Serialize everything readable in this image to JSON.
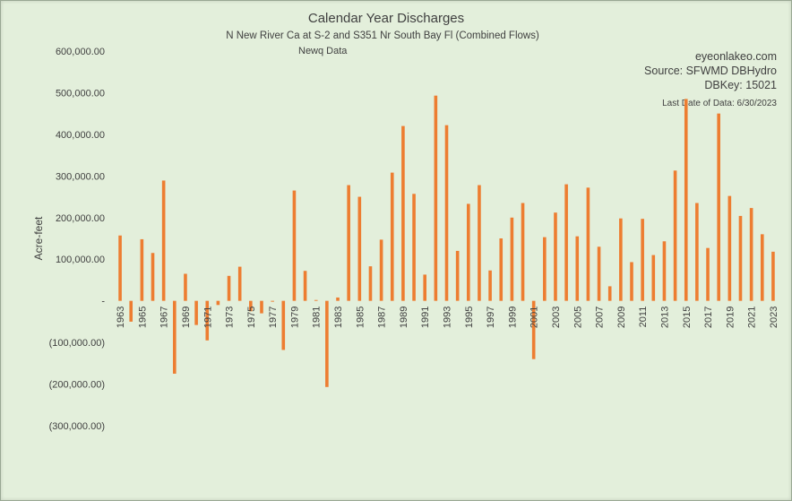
{
  "chart_data": {
    "type": "bar",
    "title": "Calendar Year Discharges",
    "subtitle": "N New River Ca at S-2 and S351 Nr South Bay Fl (Combined Flows)",
    "note": "Newq Data",
    "source_lines": [
      "eyeonlakeo.com",
      "Source: SFWMD DBHydro",
      "DBKey: 15021"
    ],
    "last_date": "Last Date of Data: 6/30/2023",
    "ylabel": "Acre-feet",
    "ylim": [
      -300000,
      600000
    ],
    "y_ticks": [
      600000,
      500000,
      400000,
      300000,
      200000,
      100000,
      0,
      -100000,
      -200000,
      -300000
    ],
    "y_tick_labels": [
      "600,000.00",
      "500,000.00",
      "400,000.00",
      "300,000.00",
      "200,000.00",
      "100,000.00",
      "-",
      "(100,000.00)",
      "(200,000.00)",
      "(300,000.00)"
    ],
    "grid": false,
    "bar_color": "#ed7d31",
    "categories": [
      "1963",
      "1964",
      "1965",
      "1966",
      "1967",
      "1968",
      "1969",
      "1970",
      "1971",
      "1972",
      "1973",
      "1974",
      "1975",
      "1976",
      "1977",
      "1978",
      "1979",
      "1980",
      "1981",
      "1982",
      "1983",
      "1984",
      "1985",
      "1986",
      "1987",
      "1988",
      "1989",
      "1990",
      "1991",
      "1992",
      "1993",
      "1994",
      "1995",
      "1996",
      "1997",
      "1998",
      "1999",
      "2000",
      "2001",
      "2002",
      "2003",
      "2004",
      "2005",
      "2006",
      "2007",
      "2008",
      "2009",
      "2010",
      "2011",
      "2012",
      "2013",
      "2014",
      "2015",
      "2016",
      "2017",
      "2018",
      "2019",
      "2020",
      "2021",
      "2022",
      "2023"
    ],
    "x_tick_labels": [
      "1963",
      "",
      "1965",
      "",
      "1967",
      "",
      "1969",
      "",
      "1971",
      "",
      "1973",
      "",
      "1975",
      "",
      "1977",
      "",
      "1979",
      "",
      "1981",
      "",
      "1983",
      "",
      "1985",
      "",
      "1987",
      "",
      "1989",
      "",
      "1991",
      "",
      "1993",
      "",
      "1995",
      "",
      "1997",
      "",
      "1999",
      "",
      "2001",
      "",
      "2003",
      "",
      "2005",
      "",
      "2007",
      "",
      "2009",
      "",
      "2011",
      "",
      "2013",
      "",
      "2015",
      "",
      "2017",
      "",
      "2019",
      "",
      "2021",
      "",
      "2023"
    ],
    "values": [
      157000,
      -50000,
      148000,
      115000,
      289000,
      -175000,
      65000,
      -58000,
      -95000,
      -10000,
      60000,
      82000,
      -25000,
      -30000,
      -2000,
      -118000,
      265000,
      72000,
      2000,
      -207000,
      8000,
      278000,
      250000,
      83000,
      147000,
      308000,
      420000,
      257000,
      63000,
      493000,
      422000,
      120000,
      233000,
      278000,
      73000,
      150000,
      200000,
      235000,
      -140000,
      153000,
      212000,
      280000,
      155000,
      272000,
      130000,
      35000,
      198000,
      93000,
      197000,
      110000,
      143000,
      313000,
      485000,
      235000,
      127000,
      450000,
      252000,
      204000,
      223000,
      160000,
      118000
    ]
  }
}
